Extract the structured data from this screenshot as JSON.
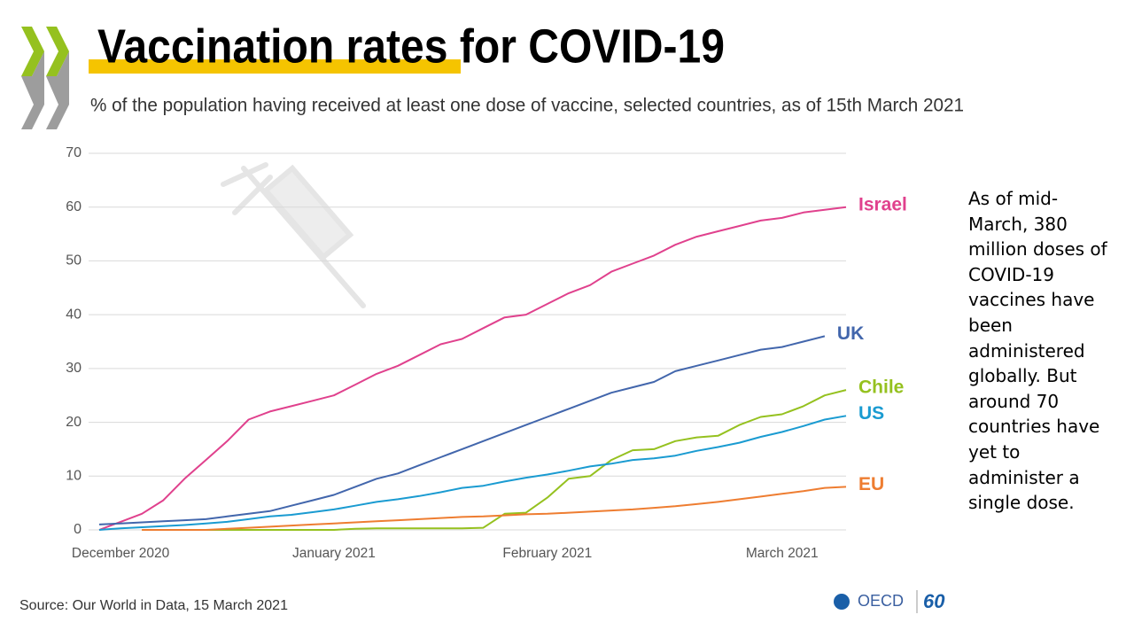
{
  "chart_data": {
    "type": "line",
    "title": "Vaccination rates for COVID-19",
    "subtitle": "% of the population having received at least one dose of vaccine,  selected countries, as of 15th March 2021",
    "categories": [
      null,
      "December 2020",
      null,
      null,
      null,
      null,
      null,
      null,
      null,
      null,
      null,
      "January  2021",
      null,
      null,
      null,
      null,
      null,
      null,
      null,
      null,
      null,
      "February  2021",
      null,
      null,
      null,
      null,
      null,
      null,
      null,
      null,
      null,
      null,
      "March  2021",
      null,
      null,
      null
    ],
    "ylim": [
      0,
      70
    ],
    "yticks": [
      0,
      10,
      20,
      30,
      40,
      50,
      60,
      70
    ],
    "grid": true,
    "series": [
      {
        "name": "Israel",
        "color": "#e0418d",
        "values": [
          0,
          1.5,
          3,
          5.5,
          9.5,
          13,
          16.5,
          20.5,
          22,
          23,
          24,
          25,
          27,
          29,
          30.5,
          32.5,
          34.5,
          35.5,
          37.5,
          39.5,
          40,
          42,
          44,
          45.5,
          48,
          49.5,
          51,
          53,
          54.5,
          55.5,
          56.5,
          57.5,
          58,
          59,
          59.5,
          60
        ]
      },
      {
        "name": "UK",
        "color": "#4266ac",
        "values": [
          1,
          1.2,
          1.4,
          1.6,
          1.8,
          2,
          2.5,
          3,
          3.5,
          4.5,
          5.5,
          6.5,
          8,
          9.5,
          10.5,
          12,
          13.5,
          15,
          16.5,
          18,
          19.5,
          21,
          22.5,
          24,
          25.5,
          26.5,
          27.5,
          29.5,
          30.5,
          31.5,
          32.5,
          33.5,
          34,
          35,
          36,
          null
        ]
      },
      {
        "name": "Chile",
        "color": "#95c11f",
        "values": [
          null,
          null,
          0,
          0,
          0,
          0,
          0,
          0,
          0,
          0,
          0,
          0,
          0.2,
          0.3,
          0.3,
          0.3,
          0.3,
          0.3,
          0.4,
          3,
          3.2,
          6,
          9.5,
          10,
          13,
          14.8,
          15,
          16.5,
          17.2,
          17.5,
          19.5,
          21,
          21.5,
          23,
          25,
          26
        ]
      },
      {
        "name": "US",
        "color": "#1a9bd1",
        "values": [
          0,
          0.3,
          0.5,
          0.7,
          0.9,
          1.2,
          1.5,
          2,
          2.5,
          2.8,
          3.3,
          3.8,
          4.5,
          5.2,
          5.7,
          6.3,
          7,
          7.8,
          8.2,
          9,
          9.7,
          10.3,
          11,
          11.8,
          12.3,
          13,
          13.3,
          13.8,
          14.7,
          15.4,
          16.2,
          17.3,
          18.2,
          19.3,
          20.5,
          21.2
        ]
      },
      {
        "name": "EU",
        "color": "#ee7d31",
        "values": [
          null,
          null,
          0,
          0,
          0,
          0,
          0.2,
          0.4,
          0.6,
          0.8,
          1,
          1.2,
          1.4,
          1.6,
          1.8,
          2,
          2.2,
          2.4,
          2.5,
          2.7,
          2.9,
          3,
          3.2,
          3.4,
          3.6,
          3.8,
          4.1,
          4.4,
          4.8,
          5.2,
          5.7,
          6.2,
          6.7,
          7.2,
          7.8,
          8
        ]
      }
    ]
  },
  "note": "As of mid-March, 380 million doses of COVID-19 vaccines have been administered globally. But around 70 countries have yet to administer a single dose.",
  "source": "Source: Our World in Data, 15 March 2021",
  "logo": {
    "name": "OECD",
    "anniversary": "60"
  }
}
